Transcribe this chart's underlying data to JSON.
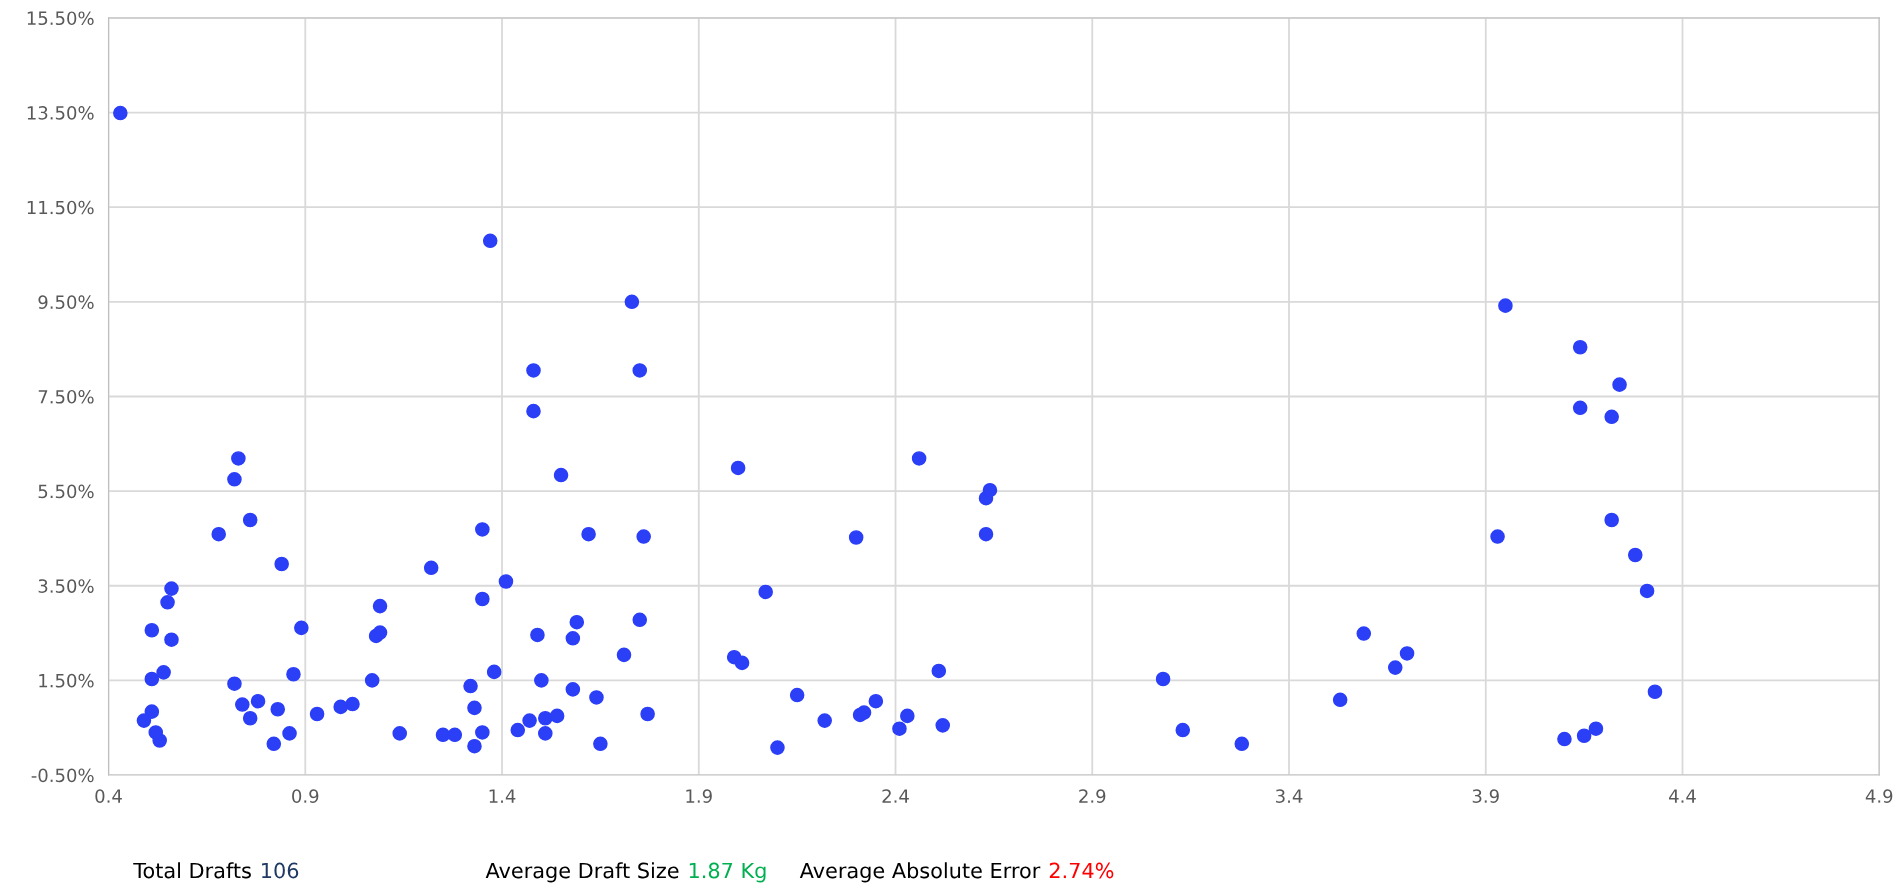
{
  "chart_data": {
    "type": "scatter",
    "x": [
      0.43,
      0.51,
      0.49,
      0.52,
      0.53,
      0.51,
      0.54,
      0.51,
      0.56,
      0.55,
      0.56,
      0.68,
      0.72,
      0.73,
      0.76,
      0.72,
      0.74,
      0.76,
      0.78,
      0.83,
      0.82,
      0.86,
      0.84,
      0.87,
      0.89,
      0.93,
      0.99,
      1.02,
      1.07,
      1.08,
      1.09,
      1.09,
      1.14,
      1.22,
      1.25,
      1.28,
      1.32,
      1.33,
      1.33,
      1.35,
      1.35,
      1.35,
      1.37,
      1.38,
      1.41,
      1.44,
      1.47,
      1.48,
      1.48,
      1.49,
      1.5,
      1.51,
      1.51,
      1.54,
      1.55,
      1.58,
      1.58,
      1.59,
      1.62,
      1.64,
      1.65,
      1.71,
      1.73,
      1.75,
      1.75,
      1.76,
      1.77,
      1.99,
      2.0,
      2.01,
      2.07,
      2.1,
      2.15,
      2.22,
      2.3,
      2.31,
      2.32,
      2.35,
      2.41,
      2.43,
      2.46,
      2.51,
      2.52,
      2.63,
      2.64,
      2.63,
      3.08,
      3.13,
      3.28,
      3.53,
      3.59,
      3.67,
      3.7,
      3.93,
      3.95,
      4.1,
      4.14,
      4.14,
      4.15,
      4.18,
      4.22,
      4.22,
      4.24,
      4.28,
      4.31,
      4.33
    ],
    "series": [
      {
        "color": "#2b3ff7",
        "values": [
          13.49,
          0.84,
          0.65,
          0.4,
          0.23,
          1.53,
          1.67,
          2.56,
          2.36,
          3.15,
          3.44,
          4.59,
          5.75,
          6.19,
          4.89,
          1.43,
          0.99,
          0.7,
          1.06,
          0.89,
          0.16,
          0.38,
          3.96,
          1.63,
          2.61,
          0.79,
          0.94,
          1.0,
          1.5,
          2.44,
          2.51,
          3.07,
          0.38,
          3.88,
          0.35,
          0.35,
          1.38,
          0.92,
          0.11,
          3.22,
          4.69,
          0.4,
          10.79,
          1.68,
          3.59,
          0.45,
          0.65,
          8.05,
          7.19,
          2.46,
          1.5,
          0.7,
          0.38,
          0.75,
          5.84,
          1.31,
          2.39,
          2.73,
          4.59,
          1.14,
          0.16,
          2.04,
          9.5,
          2.78,
          8.05,
          4.54,
          0.79,
          1.99,
          5.99,
          1.87,
          3.37,
          0.08,
          1.19,
          0.65,
          4.52,
          0.77,
          0.82,
          1.06,
          0.48,
          0.75,
          6.19,
          1.7,
          0.55,
          5.35,
          5.52,
          4.59,
          1.53,
          0.45,
          0.16,
          1.09,
          2.49,
          1.77,
          2.07,
          4.54,
          9.42,
          0.26,
          7.26,
          8.54,
          0.33,
          0.48,
          7.07,
          4.89,
          7.75,
          4.15,
          3.39,
          1.26
        ]
      }
    ],
    "xlim": [
      0.4,
      4.9
    ],
    "xticks": [
      0.4,
      0.9,
      1.4,
      1.9,
      2.4,
      2.9,
      3.4,
      3.9,
      4.4,
      4.9
    ],
    "ylim": [
      -0.5,
      15.5
    ],
    "yticks": [
      {
        "value": -0.5,
        "label": "-0.50%"
      },
      {
        "value": 1.5,
        "label": "1.50%"
      },
      {
        "value": 3.5,
        "label": "3.50%"
      },
      {
        "value": 5.5,
        "label": "5.50%"
      },
      {
        "value": 7.5,
        "label": "7.50%"
      },
      {
        "value": 9.5,
        "label": "9.50%"
      },
      {
        "value": 11.5,
        "label": "11.50%"
      },
      {
        "value": 13.5,
        "label": "13.50%"
      },
      {
        "value": 15.5,
        "label": "15.50%"
      }
    ],
    "grid": true,
    "marker": "circle",
    "annotations": [
      "Total Drafts",
      "106",
      "Average Draft Size",
      "1.87 Kg",
      "Average Absolute Error",
      "2.74%"
    ]
  }
}
